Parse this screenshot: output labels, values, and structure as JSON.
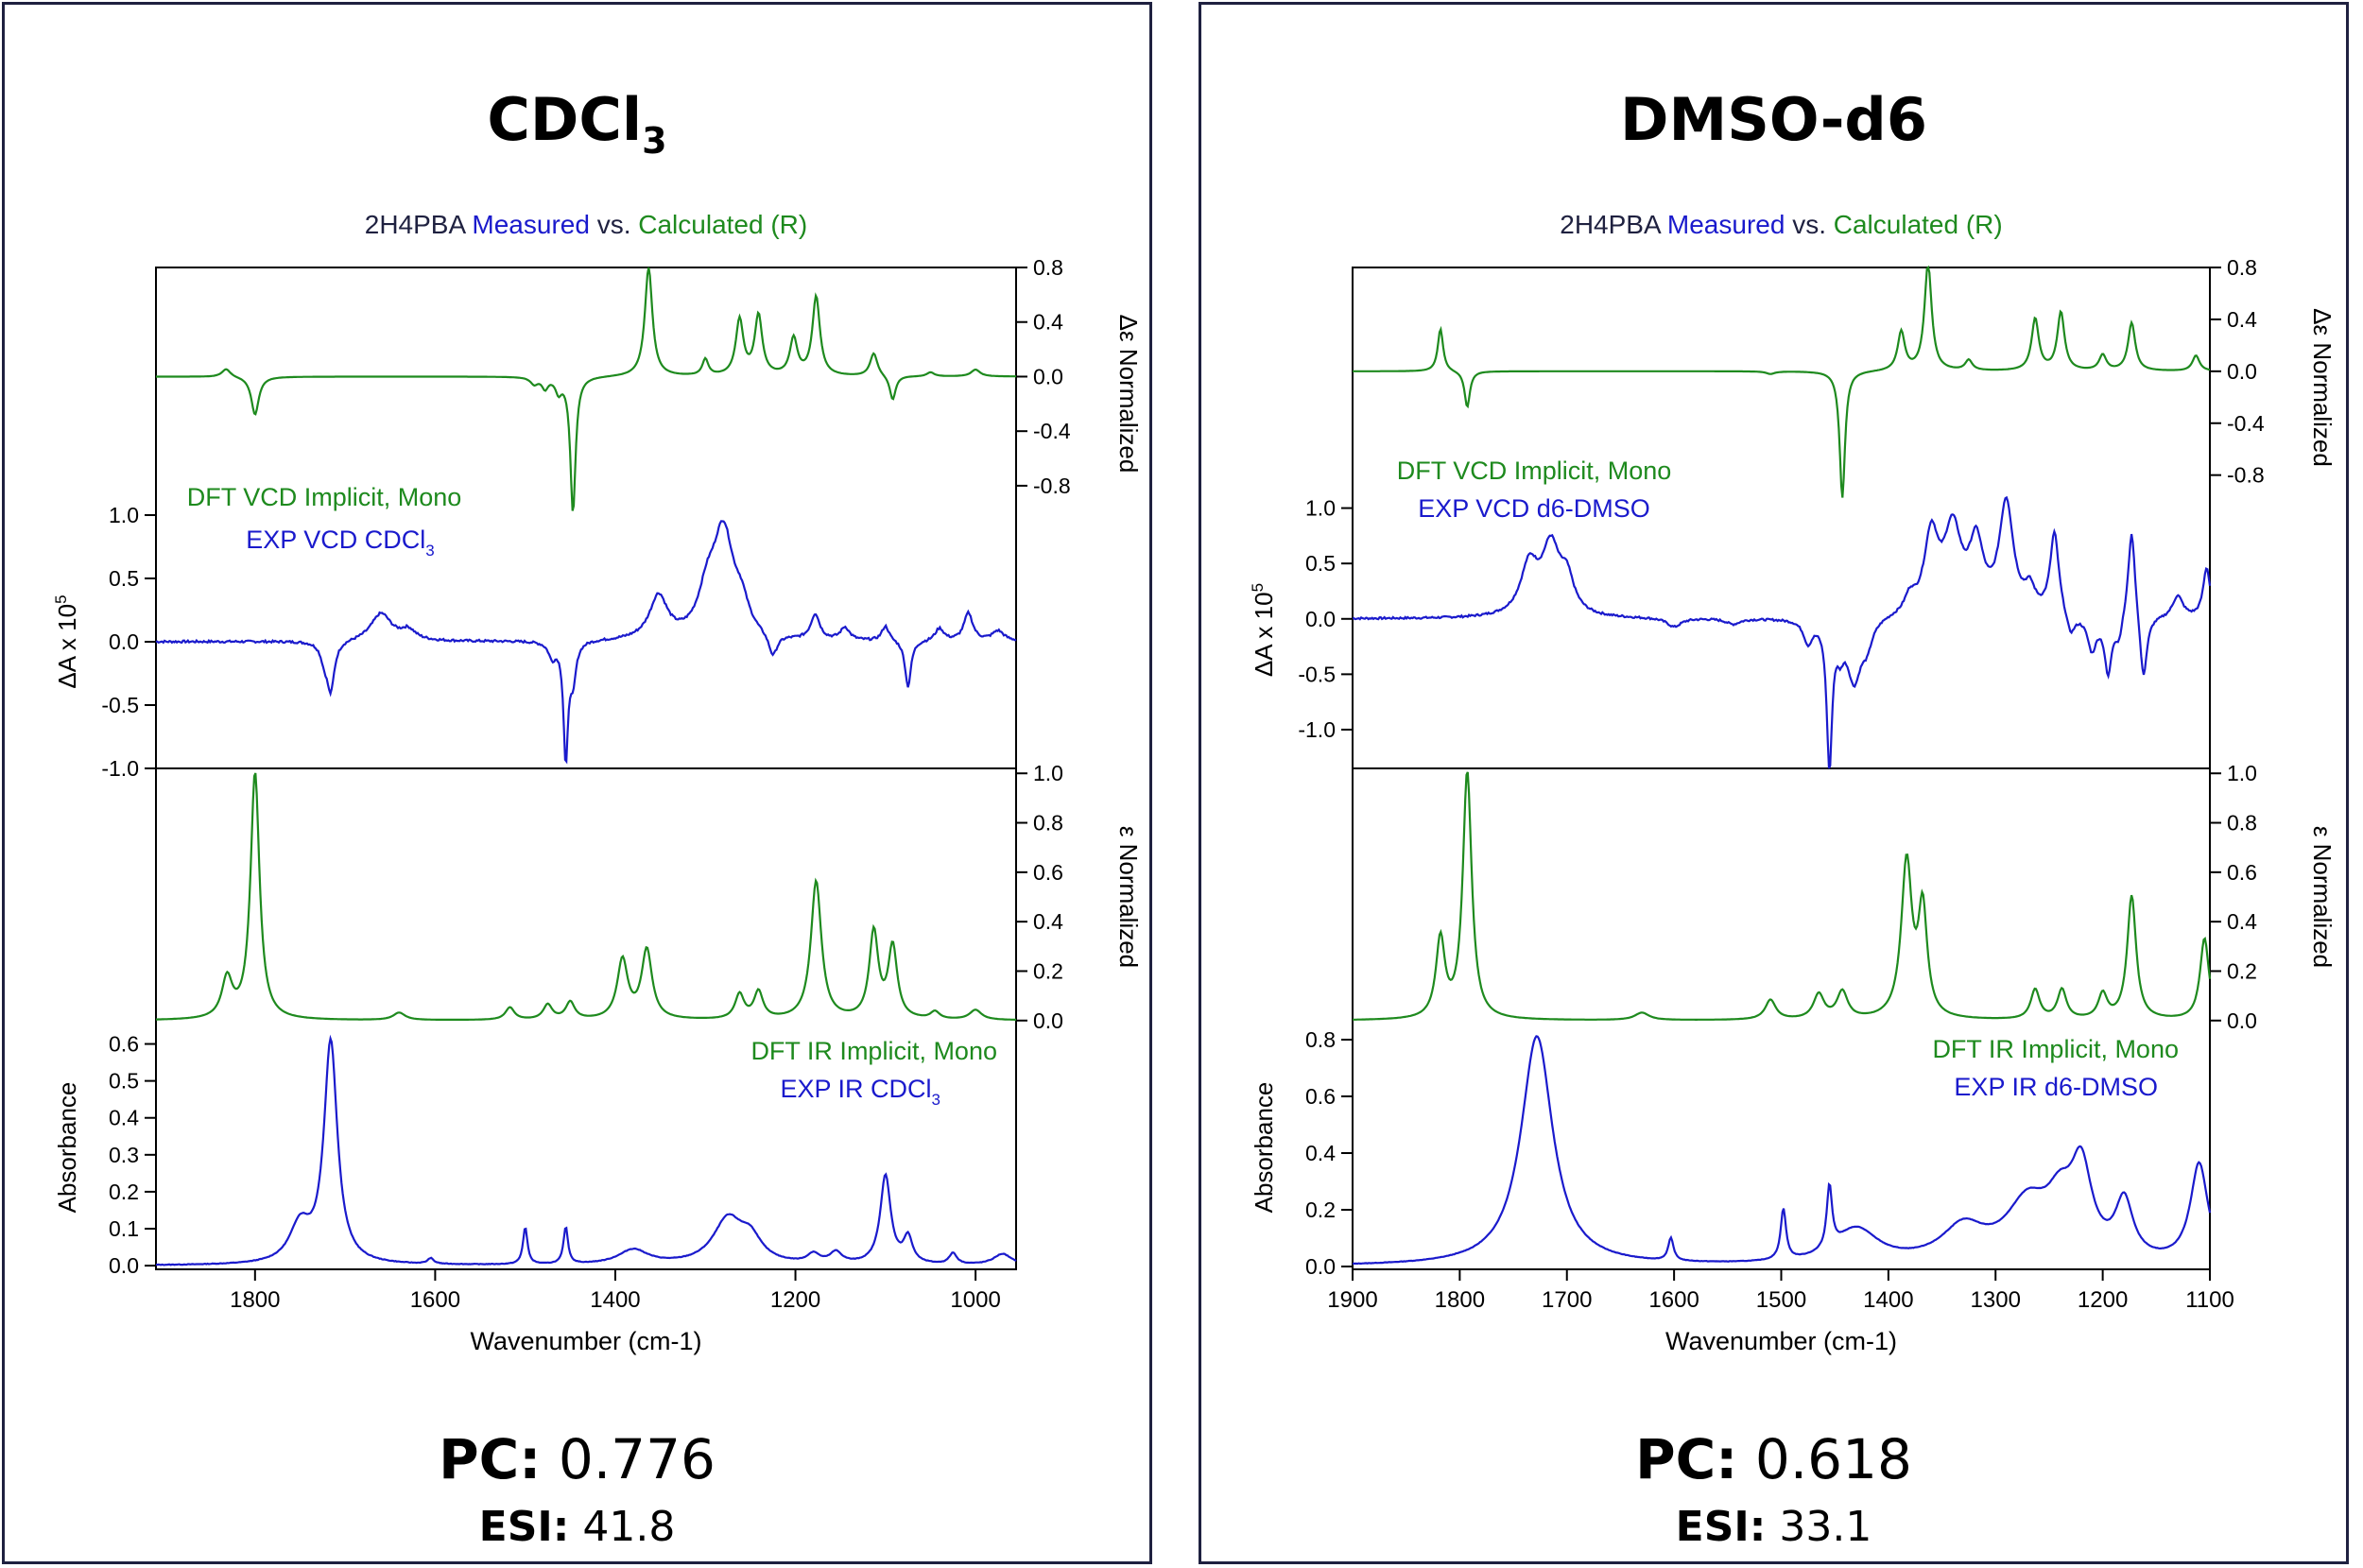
{
  "chart_data": [
    {
      "type": "line",
      "title": "CDCl3",
      "subtitle": {
        "compound": "2H4PBA",
        "measured": "Measured",
        "vs": "vs.",
        "calculated": "Calculated (R)"
      },
      "xlabel": "Wavenumber (cm-1)",
      "xlim": [
        1910,
        955
      ],
      "xticks": [
        "1800",
        "1600",
        "1400",
        "1200",
        "1000"
      ],
      "panels": {
        "vcd_calc": {
          "ylabel": "Δε Normalized",
          "ylim": [
            -1.05,
            0.8
          ],
          "ticks": [
            "0.8",
            "0.4",
            "0.0",
            "-0.4",
            "-0.8"
          ],
          "label": "DFT VCD Implicit, Mono",
          "peaks": [
            [
              1832,
              0.06,
              6
            ],
            [
              1800,
              -0.28,
              5
            ],
            [
              1490,
              -0.05,
              5
            ],
            [
              1478,
              -0.08,
              4
            ],
            [
              1463,
              -0.1,
              4
            ],
            [
              1447,
              -1.0,
              3.5
            ],
            [
              1363,
              0.8,
              5
            ],
            [
              1300,
              0.12,
              4
            ],
            [
              1262,
              0.41,
              5
            ],
            [
              1241,
              0.44,
              5
            ],
            [
              1202,
              0.27,
              5
            ],
            [
              1177,
              0.58,
              5
            ],
            [
              1113,
              0.17,
              5
            ],
            [
              1092,
              -0.18,
              4
            ],
            [
              1050,
              0.03,
              5
            ],
            [
              1000,
              0.05,
              6
            ]
          ]
        },
        "vcd_exp": {
          "ylabel": "ΔA x 10^5",
          "ylim": [
            -1.0,
            1.0
          ],
          "ticks": [
            "1.0",
            "0.5",
            "0.0",
            "-0.5",
            "-1.0"
          ],
          "label": "EXP VCD CDCl3",
          "peaks": [
            [
              1716,
              -0.38,
              5
            ],
            [
              1723,
              -0.12,
              5
            ],
            [
              1660,
              0.22,
              14
            ],
            [
              1630,
              0.08,
              10
            ],
            [
              1470,
              -0.12,
              5
            ],
            [
              1455,
              -0.93,
              3
            ],
            [
              1447,
              -0.3,
              4
            ],
            [
              1352,
              0.34,
              12
            ],
            [
              1298,
              0.3,
              12
            ],
            [
              1280,
              0.82,
              14
            ],
            [
              1260,
              0.2,
              10
            ],
            [
              1225,
              -0.18,
              6
            ],
            [
              1178,
              0.2,
              6
            ],
            [
              1145,
              0.1,
              6
            ],
            [
              1075,
              -0.37,
              4
            ],
            [
              1100,
              0.12,
              5
            ],
            [
              1040,
              0.1,
              6
            ],
            [
              1008,
              0.22,
              6
            ],
            [
              975,
              0.08,
              8
            ]
          ]
        },
        "ir_calc": {
          "ylabel": "ε Normalized",
          "ylim": [
            -0.02,
            1.02
          ],
          "ticks": [
            "1.0",
            "0.8",
            "0.6",
            "0.4",
            "0.2",
            "0.0"
          ],
          "label": "DFT IR Implicit, Mono",
          "peaks": [
            [
              1831,
              0.16,
              7
            ],
            [
              1800,
              1.0,
              6
            ],
            [
              1640,
              0.03,
              8
            ],
            [
              1517,
              0.05,
              6
            ],
            [
              1475,
              0.06,
              6
            ],
            [
              1450,
              0.07,
              6
            ],
            [
              1392,
              0.24,
              7
            ],
            [
              1365,
              0.28,
              7
            ],
            [
              1262,
              0.1,
              6
            ],
            [
              1241,
              0.11,
              6
            ],
            [
              1177,
              0.56,
              7
            ],
            [
              1113,
              0.35,
              6
            ],
            [
              1092,
              0.29,
              6
            ],
            [
              1045,
              0.03,
              6
            ],
            [
              1000,
              0.04,
              8
            ]
          ]
        },
        "ir_exp": {
          "ylabel": "Absorbance",
          "ylim": [
            -0.01,
            0.65
          ],
          "ticks": [
            "0.6",
            "0.5",
            "0.4",
            "0.3",
            "0.2",
            "0.1",
            "0.0"
          ],
          "label": "EXP IR CDCl3",
          "peaks": [
            [
              1750,
              0.1,
              14
            ],
            [
              1716,
              0.6,
              9
            ],
            [
              1605,
              0.015,
              4
            ],
            [
              1500,
              0.1,
              3
            ],
            [
              1455,
              0.1,
              3
            ],
            [
              1380,
              0.04,
              20
            ],
            [
              1275,
              0.12,
              20
            ],
            [
              1250,
              0.06,
              15
            ],
            [
              1180,
              0.025,
              8
            ],
            [
              1155,
              0.03,
              8
            ],
            [
              1100,
              0.24,
              7
            ],
            [
              1075,
              0.07,
              6
            ],
            [
              1025,
              0.03,
              5
            ],
            [
              970,
              0.03,
              12
            ]
          ]
        }
      }
    },
    {
      "type": "line",
      "title": "DMSO-d6",
      "subtitle": {
        "compound": "2H4PBA",
        "measured": "Measured",
        "vs": "vs.",
        "calculated": "Calculated (R)"
      },
      "xlabel": "Wavenumber (cm-1)",
      "xlim": [
        1900,
        1100
      ],
      "xticks": [
        "1900",
        "1800",
        "1700",
        "1600",
        "1500",
        "1400",
        "1300",
        "1200",
        "1100"
      ],
      "panels": {
        "vcd_calc": {
          "ylabel": "Δε Normalized",
          "ylim": [
            -1.05,
            0.8
          ],
          "ticks": [
            "0.8",
            "0.4",
            "0.0",
            "-0.4",
            "-0.8"
          ],
          "label": "DFT VCD Implicit, Mono",
          "peaks": [
            [
              1818,
              0.33,
              3
            ],
            [
              1793,
              -0.28,
              3
            ],
            [
              1510,
              -0.02,
              5
            ],
            [
              1443,
              -0.98,
              3
            ],
            [
              1388,
              0.3,
              4
            ],
            [
              1363,
              0.83,
              4
            ],
            [
              1325,
              0.08,
              4
            ],
            [
              1263,
              0.4,
              4
            ],
            [
              1239,
              0.45,
              4
            ],
            [
              1200,
              0.12,
              4
            ],
            [
              1173,
              0.37,
              4
            ],
            [
              1113,
              0.12,
              4
            ]
          ]
        },
        "vcd_exp": {
          "ylabel": "ΔA x 10^5",
          "ylim": [
            -1.35,
            1.15
          ],
          "ticks": [
            "1.0",
            "0.5",
            "0.0",
            "-0.5",
            "-1.0"
          ],
          "label": "EXP VCD d6-DMSO",
          "peaks": [
            [
              1735,
              0.45,
              10
            ],
            [
              1715,
              0.6,
              10
            ],
            [
              1700,
              0.3,
              8
            ],
            [
              1600,
              -0.08,
              8
            ],
            [
              1545,
              -0.05,
              8
            ],
            [
              1475,
              -0.2,
              5
            ],
            [
              1455,
              -1.3,
              3
            ],
            [
              1445,
              -0.2,
              4
            ],
            [
              1432,
              -0.55,
              8
            ],
            [
              1420,
              -0.2,
              6
            ],
            [
              1380,
              0.15,
              6
            ],
            [
              1360,
              0.7,
              8
            ],
            [
              1340,
              0.75,
              10
            ],
            [
              1318,
              0.6,
              8
            ],
            [
              1290,
              1.0,
              8
            ],
            [
              1268,
              0.2,
              6
            ],
            [
              1245,
              0.75,
              5
            ],
            [
              1230,
              -0.2,
              5
            ],
            [
              1210,
              -0.3,
              5
            ],
            [
              1195,
              -0.5,
              4
            ],
            [
              1185,
              -0.2,
              4
            ],
            [
              1173,
              0.85,
              4
            ],
            [
              1162,
              -0.6,
              4
            ],
            [
              1130,
              0.2,
              6
            ],
            [
              1103,
              0.45,
              4
            ]
          ]
        },
        "ir_calc": {
          "ylabel": "ε Normalized",
          "ylim": [
            -0.02,
            1.02
          ],
          "ticks": [
            "1.0",
            "0.8",
            "0.6",
            "0.4",
            "0.2",
            "0.0"
          ],
          "label": "",
          "peaks": [
            [
              1818,
              0.32,
              5
            ],
            [
              1793,
              1.0,
              5
            ],
            [
              1630,
              0.03,
              8
            ],
            [
              1510,
              0.08,
              6
            ],
            [
              1465,
              0.1,
              6
            ],
            [
              1443,
              0.11,
              6
            ],
            [
              1383,
              0.63,
              6
            ],
            [
              1368,
              0.43,
              5
            ],
            [
              1263,
              0.12,
              5
            ],
            [
              1238,
              0.12,
              5
            ],
            [
              1200,
              0.1,
              5
            ],
            [
              1173,
              0.5,
              5
            ],
            [
              1105,
              0.33,
              5
            ]
          ]
        },
        "ir_exp": {
          "ylabel": "Absorbance",
          "ylim": [
            -0.01,
            0.85
          ],
          "ticks": [
            "0.8",
            "0.6",
            "0.4",
            "0.2",
            "0.0"
          ],
          "label": "",
          "peaks": [
            [
              1728,
              0.81,
              18
            ],
            [
              1603,
              0.08,
              3
            ],
            [
              1498,
              0.18,
              3
            ],
            [
              1455,
              0.22,
              3
            ],
            [
              1430,
              0.12,
              25
            ],
            [
              1330,
              0.12,
              25
            ],
            [
              1270,
              0.2,
              25
            ],
            [
              1240,
              0.16,
              15
            ],
            [
              1220,
              0.3,
              12
            ],
            [
              1180,
              0.2,
              10
            ],
            [
              1110,
              0.35,
              10
            ]
          ]
        }
      }
    }
  ],
  "panels": [
    {
      "title": "CDCl",
      "title_sub": "3",
      "pc_label": "PC:",
      "pc_value": "0.776",
      "esi_label": "ESI:",
      "esi_value": "41.8",
      "labels": {
        "dft_vcd": "DFT VCD Implicit, Mono",
        "exp_vcd": "EXP VCD CDCl",
        "exp_vcd_sub": "3",
        "dft_ir": "DFT IR Implicit, Mono",
        "exp_ir": "EXP IR CDCl",
        "exp_ir_sub": "3"
      }
    },
    {
      "title": "DMSO-d6",
      "title_sub": "",
      "pc_label": "PC:",
      "pc_value": "0.618",
      "esi_label": "ESI:",
      "esi_value": "33.1",
      "labels": {
        "dft_vcd": "DFT VCD Implicit, Mono",
        "exp_vcd": "EXP VCD d6-DMSO",
        "exp_vcd_sub": "",
        "dft_ir": "DFT IR Implicit, Mono",
        "exp_ir": "EXP IR d6-DMSO",
        "exp_ir_sub": ""
      }
    }
  ],
  "axis_text": {
    "delta_eps": "Δε Normalized",
    "eps": "ε Normalized",
    "absorbance": "Absorbance",
    "delta_a": "ΔA x 10",
    "delta_a_sup": "5"
  },
  "colors": {
    "calculated": "#1e8a1e",
    "measured": "#1a1acc",
    "frame": "#1f2140",
    "axis": "#000000"
  }
}
